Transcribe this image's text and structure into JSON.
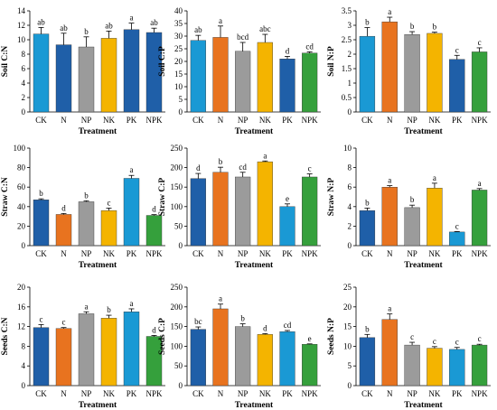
{
  "colors": [
    "#1f5fa8",
    "#e8731f",
    "#9b9b9b",
    "#f4b400",
    "#1a99d4",
    "#35a03c"
  ],
  "chart_data": [
    {
      "type": "bar",
      "ylabel": "Soil C:N",
      "xlabel": "Treatment",
      "ylim": [
        0,
        14
      ],
      "yticks": [
        0,
        2,
        4,
        6,
        8,
        10,
        12,
        14
      ],
      "categories": [
        "CK",
        "N",
        "NP",
        "NK",
        "PK",
        "NPK"
      ],
      "values": [
        10.8,
        9.3,
        9.0,
        10.2,
        11.4,
        11.0
      ],
      "errors": [
        0.9,
        1.6,
        1.4,
        1.0,
        0.9,
        0.6
      ],
      "letters": [
        "ab",
        "ab",
        "b",
        "ab",
        "a",
        "ab"
      ],
      "colors": [
        4,
        0,
        2,
        3,
        0,
        0
      ]
    },
    {
      "type": "bar",
      "ylabel": "Soil C:P",
      "xlabel": "Treatment",
      "ylim": [
        0,
        40
      ],
      "yticks": [
        0,
        5,
        10,
        15,
        20,
        25,
        30,
        35,
        40
      ],
      "categories": [
        "CK",
        "N",
        "NP",
        "NK",
        "PK",
        "NPK"
      ],
      "values": [
        28.3,
        29.5,
        24.0,
        27.5,
        21.0,
        23.3
      ],
      "errors": [
        2.0,
        4.5,
        3.5,
        3.2,
        1.0,
        0.5
      ],
      "letters": [
        "ab",
        "a",
        "bcd",
        "abc",
        "d",
        "cd"
      ],
      "colors": [
        4,
        1,
        2,
        3,
        0,
        5
      ]
    },
    {
      "type": "bar",
      "ylabel": "Soil N:P",
      "xlabel": "Treatment",
      "ylim": [
        0,
        3.5
      ],
      "yticks": [
        0,
        0.5,
        1,
        1.5,
        2,
        2.5,
        3,
        3.5
      ],
      "categories": [
        "CK",
        "N",
        "NP",
        "NK",
        "PK",
        "NPK"
      ],
      "values": [
        2.62,
        3.12,
        2.68,
        2.72,
        1.82,
        2.08
      ],
      "errors": [
        0.3,
        0.16,
        0.1,
        0.04,
        0.14,
        0.14
      ],
      "letters": [
        "b",
        "a",
        "b",
        "b",
        "c",
        "c"
      ],
      "colors": [
        4,
        1,
        2,
        3,
        0,
        5
      ]
    },
    {
      "type": "bar",
      "ylabel": "Straw C:N",
      "xlabel": "Treatment",
      "ylim": [
        0,
        100
      ],
      "yticks": [
        0,
        20,
        40,
        60,
        80,
        100
      ],
      "categories": [
        "CK",
        "N",
        "NP",
        "NK",
        "PK",
        "NPK"
      ],
      "values": [
        47,
        32,
        45,
        36,
        69,
        31
      ],
      "errors": [
        1.0,
        1.0,
        1.0,
        2.5,
        3.0,
        0.8
      ],
      "letters": [
        "b",
        "d",
        "b",
        "c",
        "a",
        "d"
      ],
      "colors": [
        0,
        1,
        2,
        3,
        4,
        5
      ]
    },
    {
      "type": "bar",
      "ylabel": "Straw C:P",
      "xlabel": "Treatment",
      "ylim": [
        0,
        250
      ],
      "yticks": [
        0,
        50,
        100,
        150,
        200,
        250
      ],
      "categories": [
        "CK",
        "N",
        "NP",
        "NK",
        "PK",
        "NPK"
      ],
      "values": [
        172,
        188,
        176,
        215,
        100,
        176
      ],
      "errors": [
        13,
        13,
        12,
        2,
        7,
        8
      ],
      "letters": [
        "d",
        "b",
        "cd",
        "a",
        "e",
        "c"
      ],
      "colors": [
        0,
        1,
        2,
        3,
        4,
        5
      ]
    },
    {
      "type": "bar",
      "ylabel": "Straw N:P",
      "xlabel": "Treatment",
      "ylim": [
        0,
        10
      ],
      "yticks": [
        0,
        2,
        4,
        6,
        8,
        10
      ],
      "categories": [
        "CK",
        "N",
        "NP",
        "NK",
        "PK",
        "NPK"
      ],
      "values": [
        3.6,
        6.0,
        3.9,
        5.9,
        1.4,
        5.7
      ],
      "errors": [
        0.25,
        0.15,
        0.25,
        0.5,
        0.05,
        0.15
      ],
      "letters": [
        "b",
        "a",
        "b",
        "a",
        "c",
        "a"
      ],
      "colors": [
        0,
        1,
        2,
        3,
        4,
        5
      ]
    },
    {
      "type": "bar",
      "ylabel": "Seeds C:N",
      "xlabel": "Treatment",
      "ylim": [
        0,
        20
      ],
      "yticks": [
        0,
        4,
        8,
        12,
        16,
        20
      ],
      "categories": [
        "CK",
        "N",
        "NP",
        "NK",
        "PK",
        "NPK"
      ],
      "values": [
        11.8,
        11.6,
        14.6,
        13.7,
        15.0,
        10.0
      ],
      "errors": [
        0.6,
        0.2,
        0.4,
        0.6,
        0.6,
        0.2
      ],
      "letters": [
        "c",
        "c",
        "a",
        "b",
        "a",
        "d"
      ],
      "colors": [
        0,
        1,
        2,
        3,
        4,
        5
      ]
    },
    {
      "type": "bar",
      "ylabel": "Seeds C:P",
      "xlabel": "Treatment",
      "ylim": [
        0,
        250
      ],
      "yticks": [
        0,
        50,
        100,
        150,
        200,
        250
      ],
      "categories": [
        "CK",
        "N",
        "NP",
        "NK",
        "PK",
        "NPK"
      ],
      "values": [
        143,
        195,
        150,
        130,
        137,
        105
      ],
      "errors": [
        6,
        12,
        7,
        2,
        3,
        1
      ],
      "letters": [
        "bc",
        "a",
        "b",
        "d",
        "cd",
        "e"
      ],
      "colors": [
        0,
        1,
        2,
        3,
        4,
        5
      ]
    },
    {
      "type": "bar",
      "ylabel": "Seeds N:P",
      "xlabel": "Treatment",
      "ylim": [
        0,
        25
      ],
      "yticks": [
        0,
        5,
        10,
        15,
        20,
        25
      ],
      "categories": [
        "CK",
        "N",
        "NP",
        "NK",
        "PK",
        "NPK"
      ],
      "values": [
        12.2,
        16.8,
        10.3,
        9.5,
        9.2,
        10.3
      ],
      "errors": [
        0.8,
        1.4,
        0.7,
        0.4,
        0.5,
        0.2
      ],
      "letters": [
        "b",
        "a",
        "c",
        "c",
        "c",
        "c"
      ],
      "colors": [
        0,
        1,
        2,
        3,
        4,
        5
      ]
    }
  ]
}
